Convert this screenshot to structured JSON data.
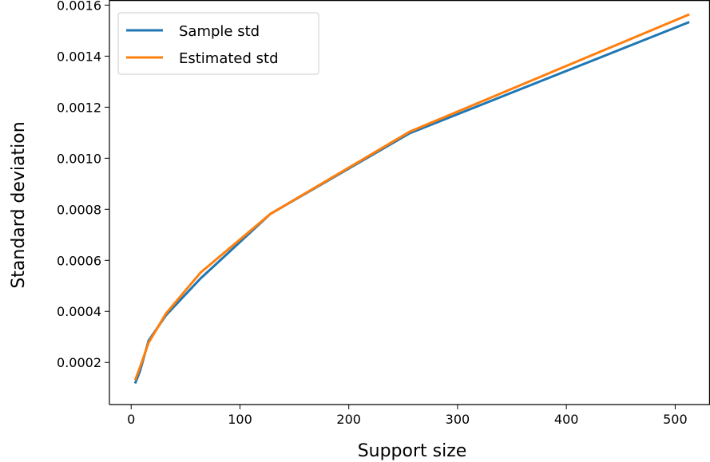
{
  "chart_data": {
    "type": "line",
    "title": "",
    "xlabel": "Support size",
    "ylabel": "Standard deviation",
    "xlim": [
      -20,
      532
    ],
    "ylim": [
      3.5e-05,
      0.00162
    ],
    "x_ticks": [
      0,
      100,
      200,
      300,
      400,
      500
    ],
    "x_tick_labels": [
      "0",
      "100",
      "200",
      "300",
      "400",
      "500"
    ],
    "y_ticks": [
      0.0002,
      0.0004,
      0.0006,
      0.0008,
      0.001,
      0.0012,
      0.0014,
      0.0016
    ],
    "y_tick_labels": [
      "0.0002",
      "0.0004",
      "0.0006",
      "0.0008",
      "0.0010",
      "0.0012",
      "0.0014",
      "0.0016"
    ],
    "grid": false,
    "legend_position": "top-left",
    "x": [
      4,
      8,
      16,
      32,
      64,
      128,
      256,
      512
    ],
    "series": [
      {
        "name": "Sample std",
        "color": "#1f77b4",
        "values": [
          0.000122,
          0.000165,
          0.000285,
          0.000385,
          0.00053,
          0.000782,
          0.001098,
          0.001532
        ]
      },
      {
        "name": "Estimated std",
        "color": "#ff7f0e",
        "values": [
          0.000135,
          0.00018,
          0.000277,
          0.000392,
          0.000553,
          0.000782,
          0.001104,
          0.001562
        ]
      }
    ]
  }
}
